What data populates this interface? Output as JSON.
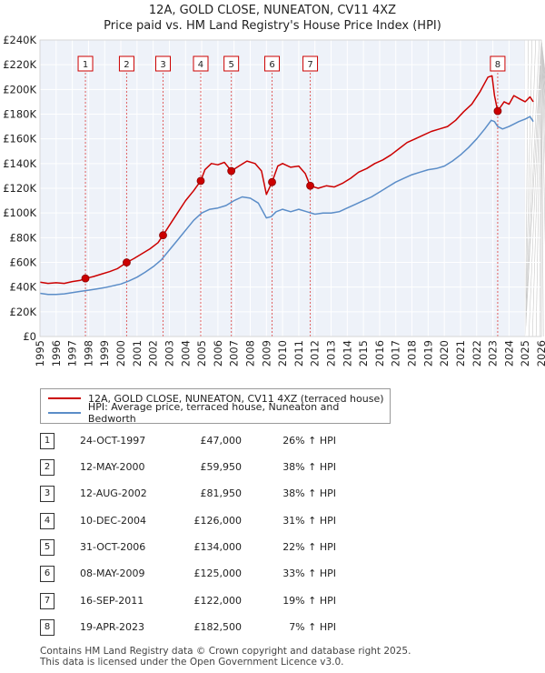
{
  "title_line1": "12A, GOLD CLOSE, NUNEATON, CV11 4XZ",
  "title_line2": "Price paid vs. HM Land Registry's House Price Index (HPI)",
  "colors": {
    "background": "#ffffff",
    "plot_bg": "#eef2f9",
    "price_line": "#cc0000",
    "hpi_line": "#5b8dc8",
    "marker_line": "#e06060",
    "grid": "#ffffff"
  },
  "legend": {
    "price_label": "12A, GOLD CLOSE, NUNEATON, CV11 4XZ (terraced house)",
    "hpi_label": "HPI: Average price, terraced house, Nuneaton and Bedworth"
  },
  "transactions": [
    {
      "num": "1",
      "date": "24-OCT-1997",
      "price": "£47,000",
      "hpi": "26% ↑ HPI"
    },
    {
      "num": "2",
      "date": "12-MAY-2000",
      "price": "£59,950",
      "hpi": "38% ↑ HPI"
    },
    {
      "num": "3",
      "date": "12-AUG-2002",
      "price": "£81,950",
      "hpi": "38% ↑ HPI"
    },
    {
      "num": "4",
      "date": "10-DEC-2004",
      "price": "£126,000",
      "hpi": "31% ↑ HPI"
    },
    {
      "num": "5",
      "date": "31-OCT-2006",
      "price": "£134,000",
      "hpi": "22% ↑ HPI"
    },
    {
      "num": "6",
      "date": "08-MAY-2009",
      "price": "£125,000",
      "hpi": "33% ↑ HPI"
    },
    {
      "num": "7",
      "date": "16-SEP-2011",
      "price": "£122,000",
      "hpi": "19% ↑ HPI"
    },
    {
      "num": "8",
      "date": "19-APR-2023",
      "price": "£182,500",
      "hpi": "7% ↑ HPI"
    }
  ],
  "footer_line1": "Contains HM Land Registry data © Crown copyright and database right 2025.",
  "footer_line2": "This data is licensed under the Open Government Licence v3.0.",
  "chart_data": {
    "type": "line",
    "title": "12A, GOLD CLOSE, NUNEATON, CV11 4XZ",
    "subtitle": "Price paid vs. HM Land Registry's House Price Index (HPI)",
    "xlabel": "",
    "ylabel": "",
    "xlim": [
      1995,
      2026
    ],
    "ylim": [
      0,
      240000
    ],
    "yticks": [
      0,
      20000,
      40000,
      60000,
      80000,
      100000,
      120000,
      140000,
      160000,
      180000,
      200000,
      220000,
      240000
    ],
    "ytick_labels": [
      "£0",
      "£20K",
      "£40K",
      "£60K",
      "£80K",
      "£100K",
      "£120K",
      "£140K",
      "£160K",
      "£180K",
      "£200K",
      "£220K",
      "£240K"
    ],
    "xticks": [
      1995,
      1996,
      1997,
      1998,
      1999,
      2000,
      2001,
      2002,
      2003,
      2004,
      2005,
      2006,
      2007,
      2008,
      2009,
      2010,
      2011,
      2012,
      2013,
      2014,
      2015,
      2016,
      2017,
      2018,
      2019,
      2020,
      2021,
      2022,
      2023,
      2024,
      2025,
      2026
    ],
    "series": [
      {
        "name": "12A, GOLD CLOSE, NUNEATON, CV11 4XZ (terraced house)",
        "x": [
          1995.0,
          1995.5,
          1996.0,
          1996.5,
          1997.0,
          1997.5,
          1997.81,
          1998.3,
          1998.8,
          1999.3,
          1999.8,
          2000.36,
          2000.8,
          2001.3,
          2001.8,
          2002.3,
          2002.61,
          2003.0,
          2003.5,
          2004.0,
          2004.5,
          2004.94,
          2005.2,
          2005.6,
          2006.0,
          2006.4,
          2006.83,
          2007.3,
          2007.8,
          2008.3,
          2008.7,
          2009.0,
          2009.35,
          2009.7,
          2010.0,
          2010.5,
          2011.0,
          2011.4,
          2011.71,
          2012.2,
          2012.7,
          2013.2,
          2013.7,
          2014.2,
          2014.7,
          2015.2,
          2015.7,
          2016.2,
          2016.7,
          2017.2,
          2017.7,
          2018.2,
          2018.7,
          2019.2,
          2019.7,
          2020.2,
          2020.7,
          2021.2,
          2021.7,
          2022.2,
          2022.7,
          2022.95,
          2023.1,
          2023.3,
          2023.7,
          2024.0,
          2024.3,
          2024.7,
          2025.0,
          2025.3,
          2025.5
        ],
        "values": [
          44000,
          43000,
          43500,
          43000,
          44500,
          45500,
          47000,
          48500,
          50500,
          52500,
          55000,
          59950,
          63000,
          67000,
          71000,
          76000,
          81950,
          90000,
          100000,
          110000,
          118000,
          126000,
          135000,
          140000,
          139000,
          141000,
          134000,
          138000,
          142000,
          140000,
          134000,
          115000,
          125000,
          138000,
          140000,
          137000,
          138000,
          132000,
          122000,
          120000,
          122000,
          121000,
          124000,
          128000,
          133000,
          136000,
          140000,
          143000,
          147000,
          152000,
          157000,
          160000,
          163000,
          166000,
          168000,
          170000,
          175000,
          182000,
          188000,
          198000,
          210000,
          211000,
          195000,
          182500,
          190000,
          188000,
          195000,
          192000,
          190000,
          194000,
          190000
        ]
      },
      {
        "name": "HPI: Average price, terraced house, Nuneaton and Bedworth",
        "x": [
          1995.0,
          1995.5,
          1996.0,
          1996.5,
          1997.0,
          1997.5,
          1998.0,
          1998.5,
          1999.0,
          1999.5,
          2000.0,
          2000.5,
          2001.0,
          2001.5,
          2002.0,
          2002.5,
          2003.0,
          2003.5,
          2004.0,
          2004.5,
          2005.0,
          2005.5,
          2006.0,
          2006.5,
          2007.0,
          2007.5,
          2008.0,
          2008.5,
          2009.0,
          2009.3,
          2009.6,
          2010.0,
          2010.5,
          2011.0,
          2011.5,
          2012.0,
          2012.5,
          2013.0,
          2013.5,
          2014.0,
          2014.5,
          2015.0,
          2015.5,
          2016.0,
          2016.5,
          2017.0,
          2017.5,
          2018.0,
          2018.5,
          2019.0,
          2019.5,
          2020.0,
          2020.5,
          2021.0,
          2021.5,
          2022.0,
          2022.5,
          2022.9,
          2023.1,
          2023.3,
          2023.6,
          2024.0,
          2024.3,
          2024.6,
          2025.0,
          2025.3,
          2025.5
        ],
        "values": [
          35000,
          34000,
          34000,
          34500,
          35500,
          36500,
          37500,
          38500,
          39500,
          41000,
          42500,
          45000,
          48000,
          52000,
          56500,
          62000,
          70000,
          78000,
          86000,
          94000,
          100000,
          103000,
          104000,
          106000,
          110000,
          113000,
          112000,
          108000,
          96000,
          97000,
          101000,
          103000,
          101000,
          103000,
          101000,
          99000,
          100000,
          100000,
          101000,
          104000,
          107000,
          110000,
          113000,
          117000,
          121000,
          125000,
          128000,
          131000,
          133000,
          135000,
          136000,
          138000,
          142000,
          147000,
          153000,
          160000,
          168000,
          175000,
          174000,
          170000,
          168000,
          170000,
          172000,
          174000,
          176000,
          178000,
          174000
        ]
      }
    ],
    "markers": [
      {
        "label": "1",
        "x": 1997.81,
        "y": 47000
      },
      {
        "label": "2",
        "x": 2000.36,
        "y": 59950
      },
      {
        "label": "3",
        "x": 2002.61,
        "y": 81950
      },
      {
        "label": "4",
        "x": 2004.94,
        "y": 126000
      },
      {
        "label": "5",
        "x": 2006.83,
        "y": 134000
      },
      {
        "label": "6",
        "x": 2009.35,
        "y": 125000
      },
      {
        "label": "7",
        "x": 2011.71,
        "y": 122000
      },
      {
        "label": "8",
        "x": 2023.3,
        "y": 182500
      }
    ],
    "shaded_from": 2025.0,
    "legend_position": "below"
  }
}
